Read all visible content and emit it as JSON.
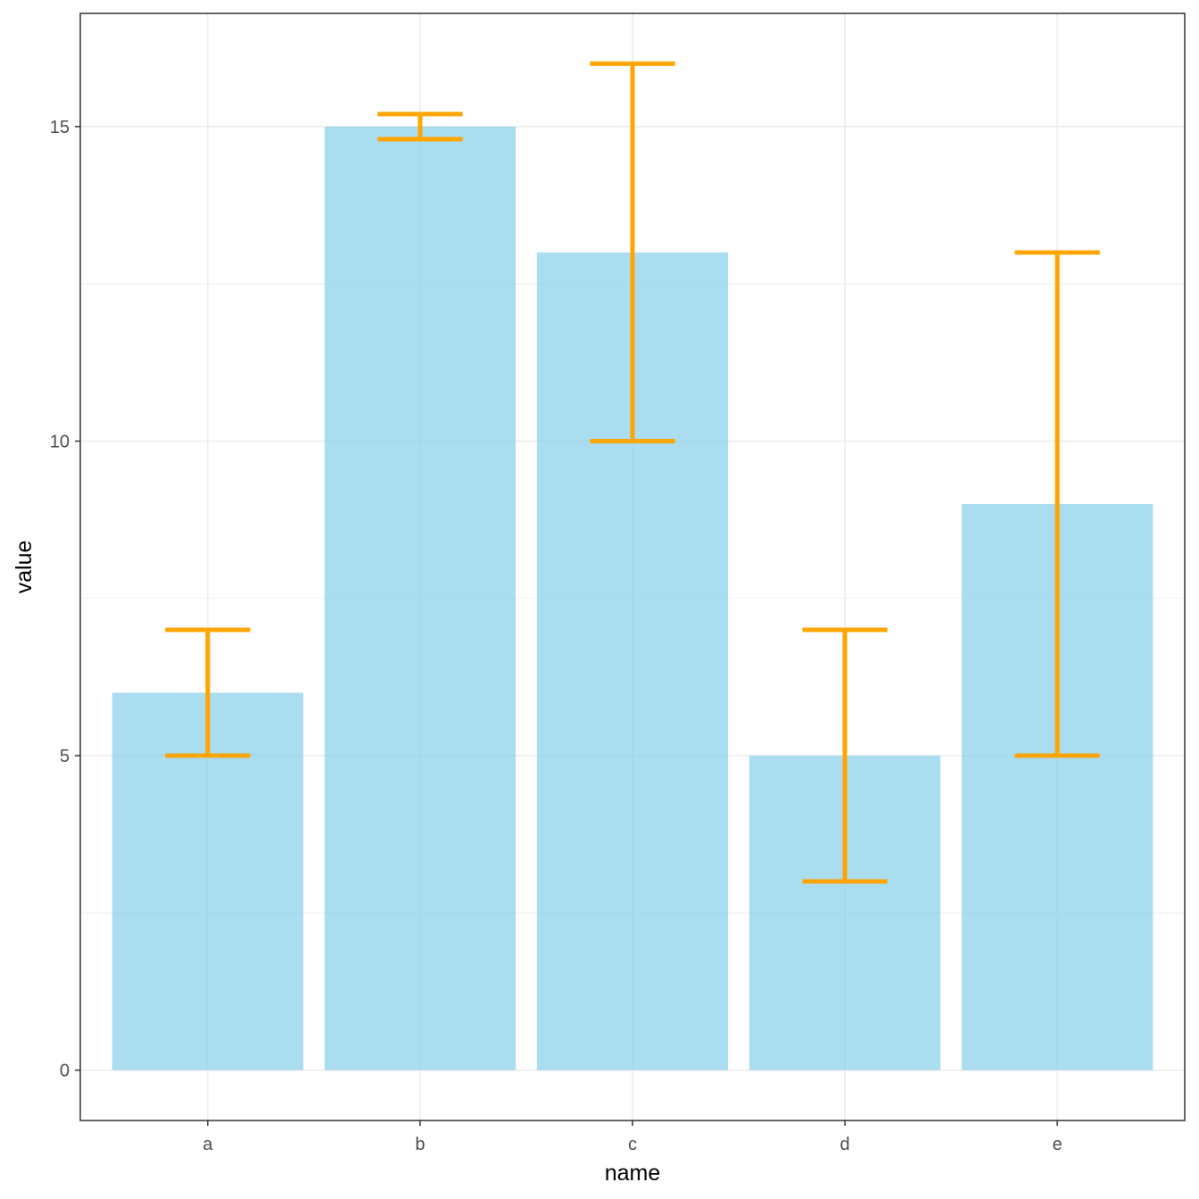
{
  "chart_data": {
    "type": "bar",
    "xlabel": "name",
    "ylabel": "value",
    "categories": [
      "a",
      "b",
      "c",
      "d",
      "e"
    ],
    "values": [
      6,
      15,
      13,
      5,
      9
    ],
    "error_bars": [
      {
        "low": 5,
        "high": 7
      },
      {
        "low": 14.8,
        "high": 15.2
      },
      {
        "low": 10,
        "high": 16
      },
      {
        "low": 3,
        "high": 7
      },
      {
        "low": 5,
        "high": 13
      }
    ],
    "yticks": [
      0,
      5,
      10,
      15
    ],
    "ylim": [
      -0.8,
      16.8
    ],
    "grid": true,
    "legend": "none",
    "colors": {
      "bar": "#87ceeb",
      "bar_opacity": 0.7,
      "error_bar": "#ffa500",
      "grid": "#ebebeb",
      "panel_border": "#333333"
    }
  }
}
